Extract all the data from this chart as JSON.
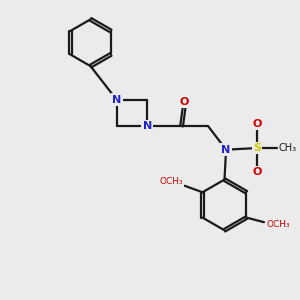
{
  "bg_color": "#ebebeb",
  "bond_color": "#1a1a1a",
  "N_color": "#2222cc",
  "O_color": "#cc0000",
  "S_color": "#cccc00",
  "lw": 1.6,
  "ag": 0.05,
  "xlim": [
    0.5,
    9.5
  ],
  "ylim": [
    1.0,
    10.0
  ]
}
